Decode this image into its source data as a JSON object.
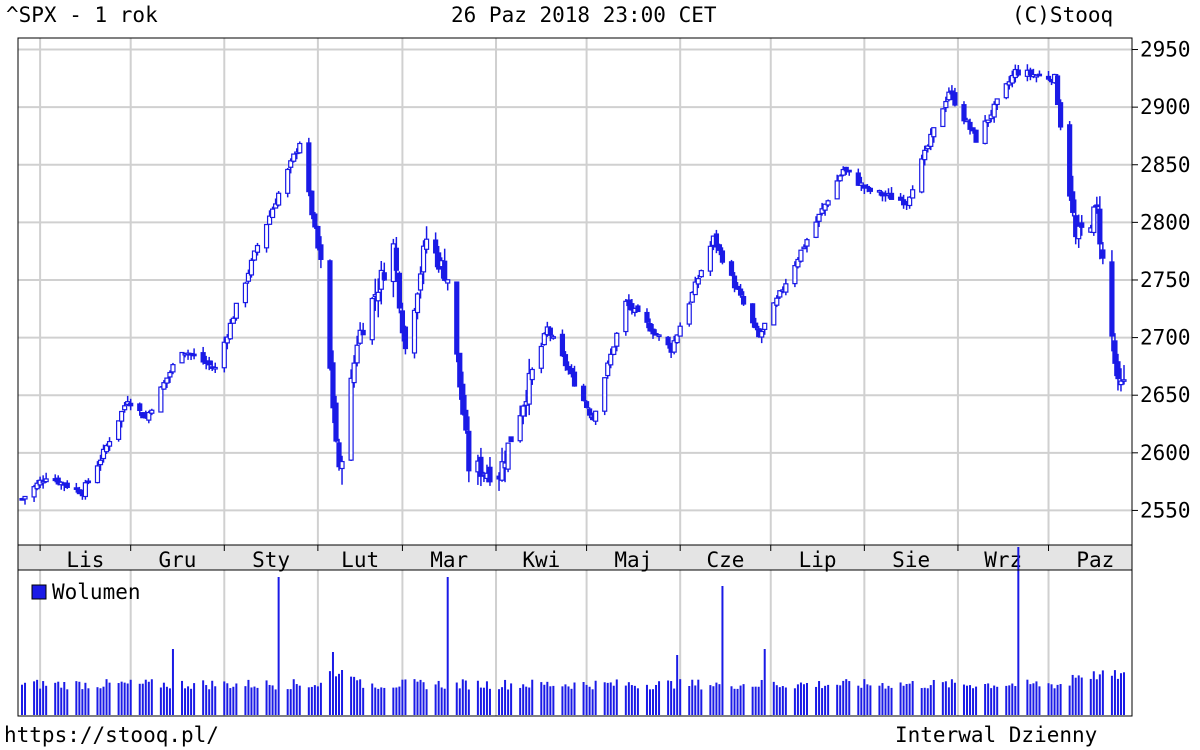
{
  "header": {
    "title": "^SPX - 1 rok",
    "date": "26 Paz 2018 23:00 CET",
    "copyright": "(C)Stooq"
  },
  "footer": {
    "url": "https://stooq.pl/",
    "interval": "Interwal Dzienny"
  },
  "colors": {
    "candle": "#1a1ae6",
    "grid": "#d0d0d0",
    "axis": "#000000",
    "legend_box": "#1a1ae6"
  },
  "chart_data": {
    "type": "candlestick",
    "title": "^SPX - 1 rok",
    "ylim": [
      2520,
      2960
    ],
    "y_ticks": [
      2550,
      2600,
      2650,
      2700,
      2750,
      2800,
      2850,
      2900,
      2950
    ],
    "month_labels": [
      "Lis",
      "Gru",
      "Sty",
      "Lut",
      "Mar",
      "Kwi",
      "Maj",
      "Cze",
      "Lip",
      "Sie",
      "Wrz",
      "Paz"
    ],
    "grid": true,
    "price_anchors": [
      {
        "date": "2017-10-26",
        "close": 2560
      },
      {
        "date": "2017-11-03",
        "close": 2580
      },
      {
        "date": "2017-11-15",
        "close": 2566
      },
      {
        "date": "2017-11-22",
        "close": 2600
      },
      {
        "date": "2017-11-30",
        "close": 2647
      },
      {
        "date": "2017-12-06",
        "close": 2630
      },
      {
        "date": "2017-12-18",
        "close": 2690
      },
      {
        "date": "2017-12-29",
        "close": 2673
      },
      {
        "date": "2018-01-12",
        "close": 2780
      },
      {
        "date": "2018-01-26",
        "close": 2870
      },
      {
        "date": "2018-02-02",
        "close": 2762
      },
      {
        "date": "2018-02-08",
        "close": 2581
      },
      {
        "date": "2018-02-14",
        "close": 2698
      },
      {
        "date": "2018-02-26",
        "close": 2779
      },
      {
        "date": "2018-03-02",
        "close": 2690
      },
      {
        "date": "2018-03-09",
        "close": 2786
      },
      {
        "date": "2018-03-16",
        "close": 2752
      },
      {
        "date": "2018-03-23",
        "close": 2588
      },
      {
        "date": "2018-04-02",
        "close": 2582
      },
      {
        "date": "2018-04-18",
        "close": 2708
      },
      {
        "date": "2018-05-03",
        "close": 2630
      },
      {
        "date": "2018-05-14",
        "close": 2730
      },
      {
        "date": "2018-05-29",
        "close": 2690
      },
      {
        "date": "2018-06-12",
        "close": 2786
      },
      {
        "date": "2018-06-27",
        "close": 2700
      },
      {
        "date": "2018-07-11",
        "close": 2775
      },
      {
        "date": "2018-07-25",
        "close": 2846
      },
      {
        "date": "2018-08-02",
        "close": 2828
      },
      {
        "date": "2018-08-15",
        "close": 2818
      },
      {
        "date": "2018-08-29",
        "close": 2914
      },
      {
        "date": "2018-09-07",
        "close": 2872
      },
      {
        "date": "2018-09-20",
        "close": 2931
      },
      {
        "date": "2018-10-03",
        "close": 2925
      },
      {
        "date": "2018-10-10",
        "close": 2785
      },
      {
        "date": "2018-10-17",
        "close": 2810
      },
      {
        "date": "2018-10-24",
        "close": 2656
      },
      {
        "date": "2018-10-26",
        "close": 2658
      }
    ],
    "volume": {
      "label": "Wolumen",
      "spikes": [
        {
          "date": "2017-12-15",
          "rel": 2.2
        },
        {
          "date": "2018-01-19",
          "rel": 4.6
        },
        {
          "date": "2018-03-16",
          "rel": 4.6
        },
        {
          "date": "2018-06-15",
          "rel": 4.3
        },
        {
          "date": "2018-06-29",
          "rel": 2.2
        },
        {
          "date": "2018-05-31",
          "rel": 2.0
        },
        {
          "date": "2018-09-21",
          "rel": 5.6
        },
        {
          "date": "2018-02-06",
          "rel": 2.1
        }
      ]
    }
  }
}
